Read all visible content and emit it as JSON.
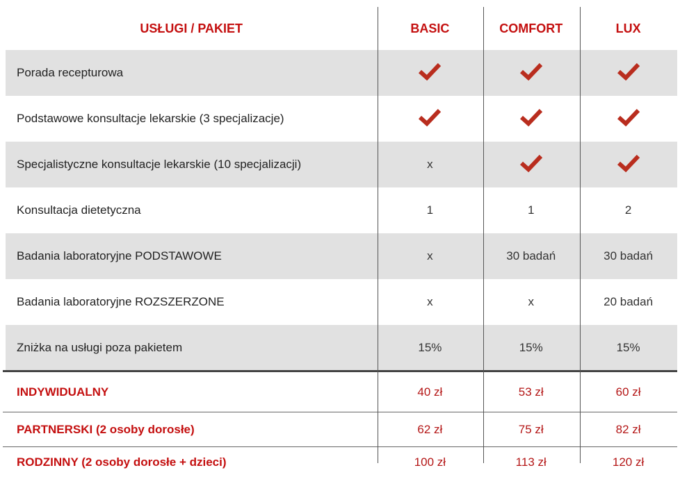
{
  "header": {
    "services": "USŁUGI / PAKIET",
    "plans": [
      "BASIC",
      "COMFORT",
      "LUX"
    ]
  },
  "colors": {
    "accent": "#c40f0f",
    "check": "#b92d1e",
    "row_alt": "#e1e1e1"
  },
  "services": [
    {
      "label": "Porada recepturowa",
      "values": [
        "check",
        "check",
        "check"
      ]
    },
    {
      "label": "Podstawowe konsultacje lekarskie (3 specjalizacje)",
      "values": [
        "check",
        "check",
        "check"
      ]
    },
    {
      "label": "Specjalistyczne konsultacje lekarskie (10 specjalizacji)",
      "values": [
        "x",
        "check",
        "check"
      ]
    },
    {
      "label": "Konsultacja dietetyczna",
      "values": [
        "1",
        "1",
        "2"
      ]
    },
    {
      "label": "Badania laboratoryjne PODSTAWOWE",
      "values": [
        "x",
        "30 badań",
        "30 badań"
      ]
    },
    {
      "label": "Badania laboratoryjne ROZSZERZONE",
      "values": [
        "x",
        "x",
        "20 badań"
      ]
    },
    {
      "label": "Zniżka na usługi poza pakietem",
      "values": [
        "15%",
        "15%",
        "15%"
      ]
    }
  ],
  "prices": [
    {
      "label": "INDYWIDUALNY",
      "values": [
        "40 zł",
        "53 zł",
        "60 zł"
      ]
    },
    {
      "label": "PARTNERSKI (2 osoby dorosłe)",
      "values": [
        "62 zł",
        "75 zł",
        "82 zł"
      ]
    },
    {
      "label": "RODZINNY (2 osoby dorosłe + dzieci)",
      "values": [
        "100 zł",
        "113 zł",
        "120 zł"
      ]
    }
  ]
}
